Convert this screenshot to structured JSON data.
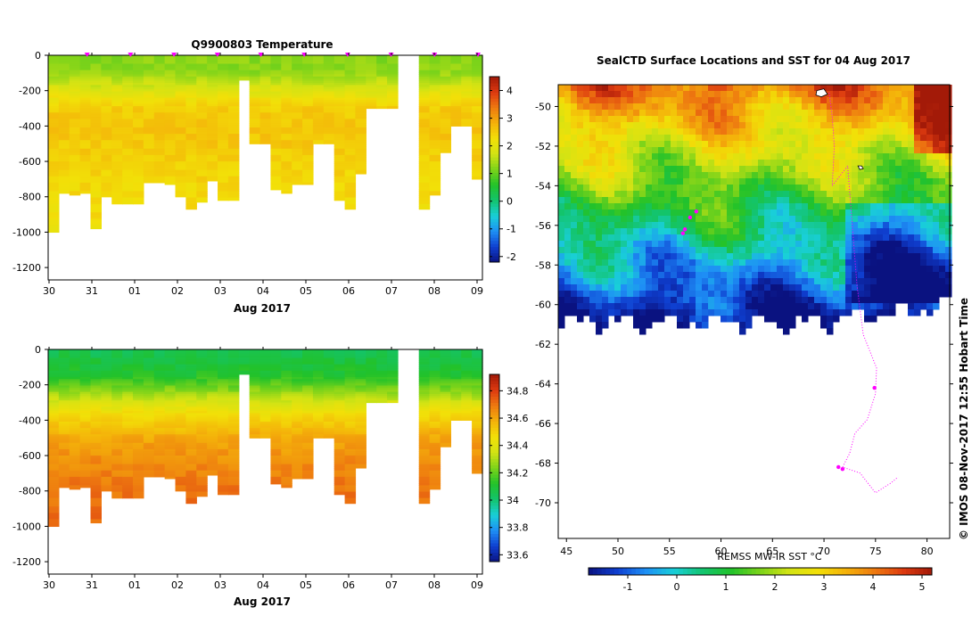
{
  "chart_data": [
    {
      "type": "heatmap",
      "title": "Q9900803  Temperature",
      "xlabel": "Aug 2017",
      "x_ticks": [
        "30",
        "31",
        "01",
        "02",
        "03",
        "04",
        "05",
        "06",
        "07",
        "08",
        "09"
      ],
      "y_ticks": [
        "0",
        "-200",
        "-400",
        "-600",
        "-800",
        "-1000",
        "-1200"
      ],
      "ylim": [
        -1270,
        0
      ],
      "colorbar_ticks": [
        "4",
        "3",
        "2",
        "1",
        "0",
        "-1",
        "-2"
      ],
      "colorbar_range": [
        -2.2,
        4.5
      ],
      "profile_depths": [
        1000,
        780,
        790,
        780,
        980,
        800,
        840,
        840,
        840,
        720,
        720,
        730,
        800,
        870,
        830,
        710,
        820,
        820,
        140,
        500,
        500,
        760,
        780,
        730,
        730,
        500,
        500,
        820,
        870,
        670,
        300,
        300,
        300,
        -1,
        -1,
        870,
        790,
        550,
        400,
        400,
        700
      ],
      "water_column": [
        {
          "depth": 0,
          "value": 1.2
        },
        {
          "depth": 100,
          "value": 1.3
        },
        {
          "depth": 170,
          "value": 1.7
        },
        {
          "depth": 240,
          "value": 2.2
        },
        {
          "depth": 300,
          "value": 2.5
        },
        {
          "depth": 420,
          "value": 2.6
        },
        {
          "depth": 550,
          "value": 2.5
        },
        {
          "depth": 700,
          "value": 2.4
        },
        {
          "depth": 900,
          "value": 2.3
        },
        {
          "depth": 1000,
          "value": 2.2
        }
      ]
    },
    {
      "type": "heatmap",
      "title": "",
      "xlabel": "Aug 2017",
      "x_ticks": [
        "30",
        "31",
        "01",
        "02",
        "03",
        "04",
        "05",
        "06",
        "07",
        "08",
        "09"
      ],
      "y_ticks": [
        "0",
        "-200",
        "-400",
        "-600",
        "-800",
        "-1000",
        "-1200"
      ],
      "ylim": [
        -1270,
        0
      ],
      "colorbar_ticks": [
        "34.8",
        "34.6",
        "34.4",
        "34.2",
        "34",
        "33.8",
        "33.6"
      ],
      "colorbar_range": [
        33.55,
        34.92
      ],
      "profile_depths": [
        1000,
        780,
        790,
        780,
        980,
        800,
        840,
        840,
        840,
        720,
        720,
        730,
        800,
        870,
        830,
        710,
        820,
        820,
        140,
        500,
        500,
        760,
        780,
        730,
        730,
        500,
        500,
        820,
        870,
        670,
        300,
        300,
        300,
        -1,
        -1,
        870,
        790,
        550,
        400,
        400,
        700
      ],
      "water_column": [
        {
          "depth": 0,
          "value": 34.05
        },
        {
          "depth": 150,
          "value": 34.12
        },
        {
          "depth": 200,
          "value": 34.2
        },
        {
          "depth": 260,
          "value": 34.3
        },
        {
          "depth": 350,
          "value": 34.45
        },
        {
          "depth": 500,
          "value": 34.6
        },
        {
          "depth": 650,
          "value": 34.66
        },
        {
          "depth": 800,
          "value": 34.7
        },
        {
          "depth": 1000,
          "value": 34.72
        }
      ]
    },
    {
      "type": "heatmap",
      "title": "SealCTD Surface Locations and SST for 04 Aug 2017",
      "x_ticks": [
        "45",
        "50",
        "55",
        "60",
        "65",
        "70",
        "75",
        "80"
      ],
      "xlim": [
        44.2,
        82.2
      ],
      "y_ticks": [
        "-50",
        "-52",
        "-54",
        "-56",
        "-58",
        "-60",
        "-62",
        "-64",
        "-66",
        "-68",
        "-70"
      ],
      "ylim": [
        -71.8,
        -48.9
      ],
      "colorbar_label": "REMSS MW-IR SST °C",
      "colorbar_ticks": [
        "-1",
        "0",
        "1",
        "2",
        "3",
        "4",
        "5"
      ],
      "colorbar_range": [
        -1.8,
        5.2
      ]
    }
  ],
  "timestamp": "© IMOS 08-Nov-2017 12:55 Hobart Time",
  "colors": {
    "temperature_scale": [
      "#0a1280",
      "#0f3fd0",
      "#1e8ff5",
      "#19cfd8",
      "#13c46d",
      "#22c22a",
      "#7bd31a",
      "#d2e314",
      "#f2e008",
      "#f4b20a",
      "#ee7a10",
      "#dd3a10",
      "#a31a08"
    ],
    "salinity_scale": [
      "#0a1280",
      "#0f3fd0",
      "#1e8ff5",
      "#19cfd8",
      "#13c46d",
      "#22c22a",
      "#7bd31a",
      "#d2e314",
      "#f2e008",
      "#f4b20a",
      "#ee7a10",
      "#dd3a10",
      "#a31a08"
    ],
    "track": "#ff00ff"
  }
}
